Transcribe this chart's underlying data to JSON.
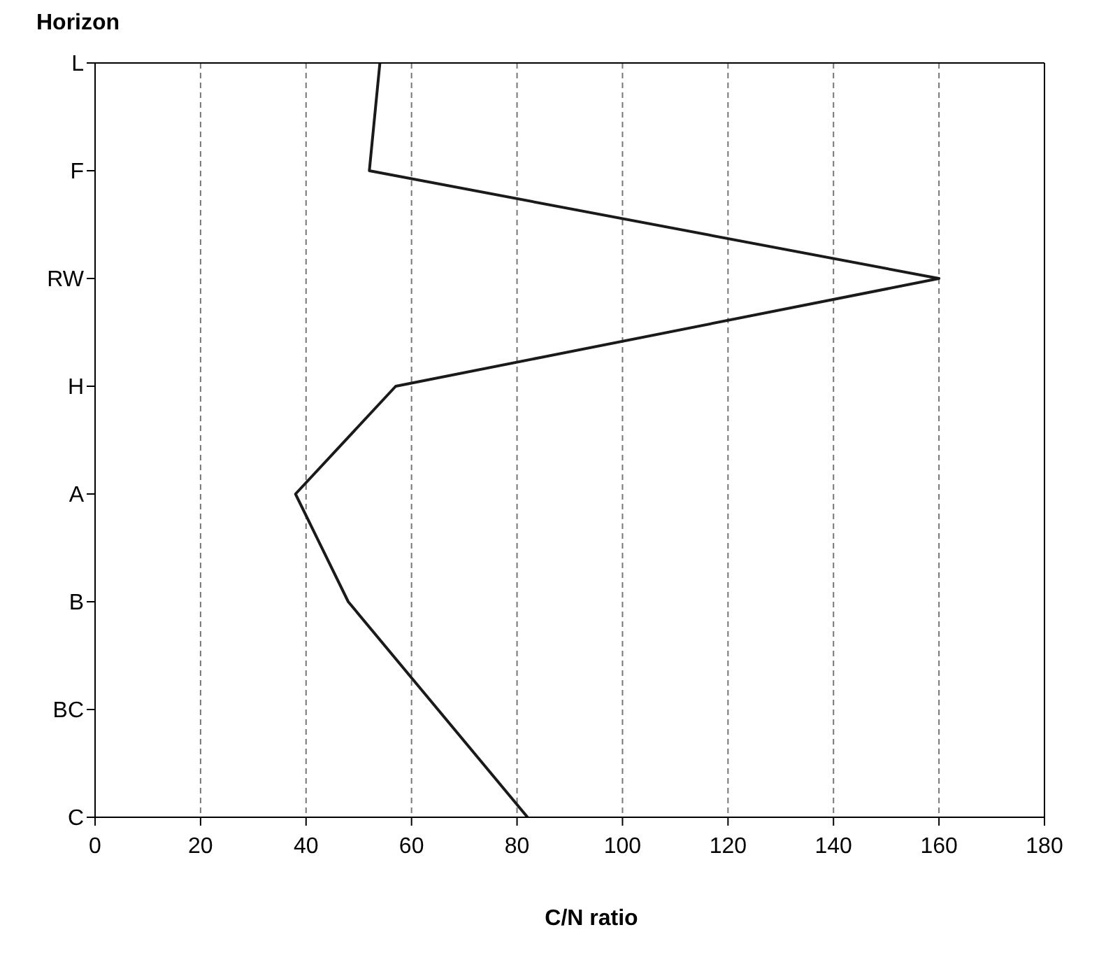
{
  "chart_data": {
    "type": "line",
    "orientation": "horizontal",
    "xlabel": "C/N ratio",
    "ylabel": "Horizon",
    "categories": [
      "L",
      "F",
      "RW",
      "H",
      "A",
      "B",
      "BC",
      "C"
    ],
    "series": [
      {
        "color": "#1a1a1a",
        "values": [
          54,
          52,
          160,
          57,
          38,
          48,
          65,
          82
        ]
      }
    ],
    "xlim": [
      0,
      180
    ],
    "xticks": [
      0,
      20,
      40,
      60,
      80,
      100,
      120,
      140,
      160,
      180
    ],
    "grid": "x",
    "marker": "none",
    "line_style": "solid"
  }
}
